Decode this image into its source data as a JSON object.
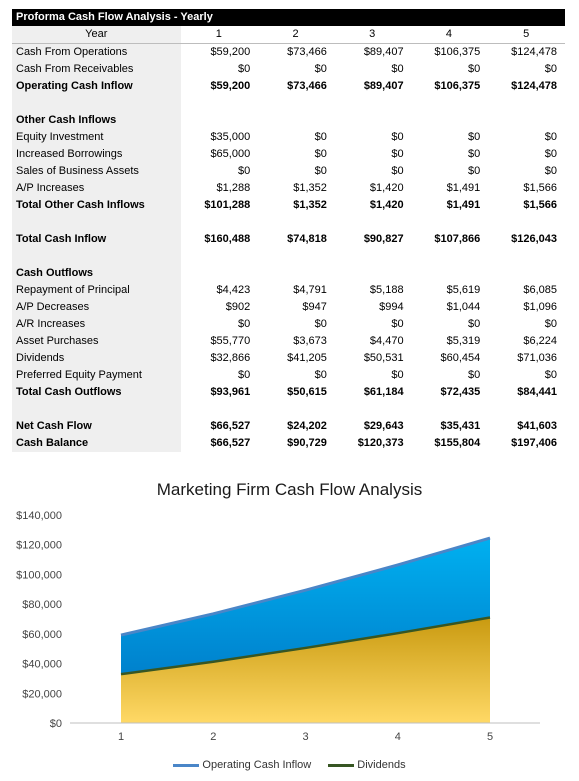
{
  "table": {
    "title": "Proforma Cash Flow Analysis - Yearly",
    "header": [
      "Year",
      "1",
      "2",
      "3",
      "4",
      "5"
    ],
    "rows": [
      {
        "label": "Cash From Operations",
        "values": [
          "$59,200",
          "$73,466",
          "$89,407",
          "$106,375",
          "$124,478"
        ],
        "bold": false
      },
      {
        "label": "Cash From Receivables",
        "values": [
          "$0",
          "$0",
          "$0",
          "$0",
          "$0"
        ],
        "bold": false
      },
      {
        "label": "Operating Cash Inflow",
        "values": [
          "$59,200",
          "$73,466",
          "$89,407",
          "$106,375",
          "$124,478"
        ],
        "bold": true
      },
      {
        "label": "",
        "values": [
          "",
          "",
          "",
          "",
          ""
        ],
        "bold": false
      },
      {
        "label": "Other Cash Inflows",
        "values": [
          "",
          "",
          "",
          "",
          ""
        ],
        "bold": true
      },
      {
        "label": "Equity Investment",
        "values": [
          "$35,000",
          "$0",
          "$0",
          "$0",
          "$0"
        ],
        "bold": false
      },
      {
        "label": "Increased Borrowings",
        "values": [
          "$65,000",
          "$0",
          "$0",
          "$0",
          "$0"
        ],
        "bold": false
      },
      {
        "label": "Sales of Business Assets",
        "values": [
          "$0",
          "$0",
          "$0",
          "$0",
          "$0"
        ],
        "bold": false
      },
      {
        "label": "A/P Increases",
        "values": [
          "$1,288",
          "$1,352",
          "$1,420",
          "$1,491",
          "$1,566"
        ],
        "bold": false
      },
      {
        "label": "Total Other Cash Inflows",
        "values": [
          "$101,288",
          "$1,352",
          "$1,420",
          "$1,491",
          "$1,566"
        ],
        "bold": true
      },
      {
        "label": "",
        "values": [
          "",
          "",
          "",
          "",
          ""
        ],
        "bold": false
      },
      {
        "label": "Total Cash Inflow",
        "values": [
          "$160,488",
          "$74,818",
          "$90,827",
          "$107,866",
          "$126,043"
        ],
        "bold": true
      },
      {
        "label": "",
        "values": [
          "",
          "",
          "",
          "",
          ""
        ],
        "bold": false
      },
      {
        "label": "Cash Outflows",
        "values": [
          "",
          "",
          "",
          "",
          ""
        ],
        "bold": true
      },
      {
        "label": "Repayment of Principal",
        "values": [
          "$4,423",
          "$4,791",
          "$5,188",
          "$5,619",
          "$6,085"
        ],
        "bold": false
      },
      {
        "label": "A/P Decreases",
        "values": [
          "$902",
          "$947",
          "$994",
          "$1,044",
          "$1,096"
        ],
        "bold": false
      },
      {
        "label": "A/R Increases",
        "values": [
          "$0",
          "$0",
          "$0",
          "$0",
          "$0"
        ],
        "bold": false
      },
      {
        "label": "Asset Purchases",
        "values": [
          "$55,770",
          "$3,673",
          "$4,470",
          "$5,319",
          "$6,224"
        ],
        "bold": false
      },
      {
        "label": "Dividends",
        "values": [
          "$32,866",
          "$41,205",
          "$50,531",
          "$60,454",
          "$71,036"
        ],
        "bold": false
      },
      {
        "label": "Preferred Equity Payment",
        "values": [
          "$0",
          "$0",
          "$0",
          "$0",
          "$0"
        ],
        "bold": false
      },
      {
        "label": "Total Cash Outflows",
        "values": [
          "$93,961",
          "$50,615",
          "$61,184",
          "$72,435",
          "$84,441"
        ],
        "bold": true
      },
      {
        "label": "",
        "values": [
          "",
          "",
          "",
          "",
          ""
        ],
        "bold": false
      },
      {
        "label": "Net Cash Flow",
        "values": [
          "$66,527",
          "$24,202",
          "$29,643",
          "$35,431",
          "$41,603"
        ],
        "bold": true
      },
      {
        "label": "Cash Balance",
        "values": [
          "$66,527",
          "$90,729",
          "$120,373",
          "$155,804",
          "$197,406"
        ],
        "bold": true
      }
    ]
  },
  "chart_data": {
    "type": "area",
    "title": "Marketing Firm Cash Flow Analysis",
    "categories": [
      "1",
      "2",
      "3",
      "4",
      "5"
    ],
    "series": [
      {
        "name": "Operating Cash Inflow",
        "values": [
          59200,
          73466,
          89407,
          106375,
          124478
        ],
        "line_color": "#4a86c8",
        "fill_top": "#00b0f0",
        "fill_bottom": "#0070c0"
      },
      {
        "name": "Dividends",
        "values": [
          32866,
          41205,
          50531,
          60454,
          71036
        ],
        "line_color": "#375623",
        "fill_top": "#c99a10",
        "fill_bottom": "#ffd966"
      }
    ],
    "y_ticks": [
      "$0",
      "$20,000",
      "$40,000",
      "$60,000",
      "$80,000",
      "$100,000",
      "$120,000",
      "$140,000"
    ],
    "ylim": [
      0,
      140000
    ],
    "legend_position": "bottom",
    "grid": false
  }
}
